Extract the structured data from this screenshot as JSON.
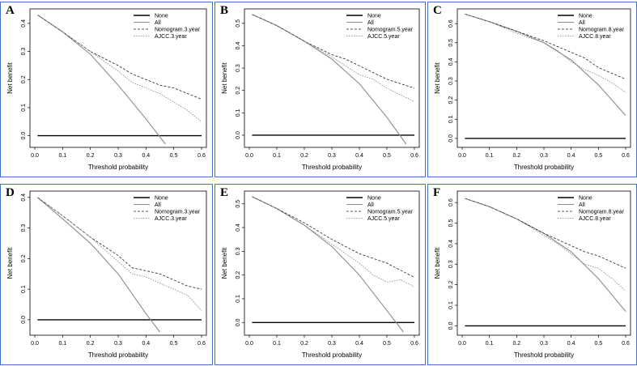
{
  "figure": {
    "colors": {
      "frame": "#4472c4",
      "none": "#000000",
      "all": "#8c8c8c",
      "nomogram": "#222222",
      "ajcc": "#888888"
    }
  },
  "chart_data": [
    {
      "type": "line",
      "panel": "A",
      "xlabel": "Threshold probability",
      "ylabel": "Net benefit",
      "xlim": [
        0,
        0.6
      ],
      "ylim": [
        -0.03,
        0.44
      ],
      "xticks": [
        "0.0",
        "0.1",
        "0.2",
        "0.3",
        "0.4",
        "0.5",
        "0.6"
      ],
      "yticks": [
        "0.0",
        "0.1",
        "0.2",
        "0.3",
        "0.4"
      ],
      "legend": [
        "None",
        "All",
        "Nomogram.3.year",
        "AJCC.3.year"
      ],
      "series": [
        {
          "name": "None",
          "x": [
            0.01,
            0.6
          ],
          "y": [
            0,
            0
          ]
        },
        {
          "name": "All",
          "x": [
            0.01,
            0.1,
            0.2,
            0.3,
            0.4,
            0.47
          ],
          "y": [
            0.43,
            0.37,
            0.29,
            0.18,
            0.06,
            -0.03
          ]
        },
        {
          "name": "Nomogram.3.year",
          "x": [
            0.01,
            0.1,
            0.2,
            0.3,
            0.35,
            0.4,
            0.45,
            0.5,
            0.55,
            0.6
          ],
          "y": [
            0.43,
            0.37,
            0.3,
            0.25,
            0.22,
            0.2,
            0.18,
            0.17,
            0.15,
            0.13
          ]
        },
        {
          "name": "AJCC.3.year",
          "x": [
            0.01,
            0.1,
            0.2,
            0.3,
            0.35,
            0.4,
            0.45,
            0.5,
            0.55,
            0.6
          ],
          "y": [
            0.43,
            0.37,
            0.3,
            0.23,
            0.19,
            0.17,
            0.15,
            0.12,
            0.09,
            0.05
          ]
        }
      ]
    },
    {
      "type": "line",
      "panel": "B",
      "xlabel": "Threshold probability",
      "ylabel": "Net benefit",
      "xlim": [
        0,
        0.6
      ],
      "ylim": [
        -0.04,
        0.55
      ],
      "xticks": [
        "0.0",
        "0.1",
        "0.2",
        "0.3",
        "0.4",
        "0.5",
        "0.6"
      ],
      "yticks": [
        "0.0",
        "0.1",
        "0.2",
        "0.3",
        "0.4",
        "0.5"
      ],
      "legend": [
        "None",
        "All",
        "Nomogram.5.year",
        "AJCC.5.year"
      ],
      "series": [
        {
          "name": "None",
          "x": [
            0.01,
            0.6
          ],
          "y": [
            0,
            0
          ]
        },
        {
          "name": "All",
          "x": [
            0.01,
            0.1,
            0.2,
            0.3,
            0.4,
            0.5,
            0.57
          ],
          "y": [
            0.54,
            0.49,
            0.42,
            0.34,
            0.23,
            0.08,
            -0.04
          ]
        },
        {
          "name": "Nomogram.5.year",
          "x": [
            0.01,
            0.1,
            0.2,
            0.3,
            0.35,
            0.4,
            0.45,
            0.5,
            0.55,
            0.6
          ],
          "y": [
            0.54,
            0.49,
            0.42,
            0.36,
            0.34,
            0.31,
            0.28,
            0.25,
            0.23,
            0.21
          ]
        },
        {
          "name": "AJCC.5.year",
          "x": [
            0.01,
            0.1,
            0.2,
            0.3,
            0.35,
            0.4,
            0.45,
            0.5,
            0.55,
            0.6
          ],
          "y": [
            0.54,
            0.49,
            0.42,
            0.35,
            0.31,
            0.27,
            0.25,
            0.21,
            0.18,
            0.15
          ]
        }
      ]
    },
    {
      "type": "line",
      "panel": "C",
      "xlabel": "Threshold probability",
      "ylabel": "Net benefit",
      "xlim": [
        0,
        0.6
      ],
      "ylim": [
        -0.03,
        0.66
      ],
      "xticks": [
        "0.0",
        "0.1",
        "0.2",
        "0.3",
        "0.4",
        "0.5",
        "0.6"
      ],
      "yticks": [
        "0.0",
        "0.1",
        "0.2",
        "0.3",
        "0.4",
        "0.5",
        "0.6"
      ],
      "legend": [
        "None",
        "All",
        "Nomogram.8.year",
        "AJCC.8.year"
      ],
      "series": [
        {
          "name": "None",
          "x": [
            0.01,
            0.6
          ],
          "y": [
            0,
            0
          ]
        },
        {
          "name": "All",
          "x": [
            0.01,
            0.1,
            0.2,
            0.3,
            0.4,
            0.5,
            0.6
          ],
          "y": [
            0.65,
            0.61,
            0.56,
            0.5,
            0.41,
            0.28,
            0.12
          ]
        },
        {
          "name": "Nomogram.8.year",
          "x": [
            0.01,
            0.1,
            0.2,
            0.3,
            0.35,
            0.4,
            0.45,
            0.5,
            0.55,
            0.6
          ],
          "y": [
            0.65,
            0.61,
            0.56,
            0.51,
            0.48,
            0.45,
            0.42,
            0.37,
            0.34,
            0.31
          ]
        },
        {
          "name": "AJCC.8.year",
          "x": [
            0.01,
            0.1,
            0.2,
            0.3,
            0.35,
            0.4,
            0.45,
            0.5,
            0.55,
            0.6
          ],
          "y": [
            0.65,
            0.61,
            0.55,
            0.5,
            0.46,
            0.4,
            0.36,
            0.33,
            0.29,
            0.24
          ]
        }
      ]
    },
    {
      "type": "line",
      "panel": "D",
      "xlabel": "Threshold probability",
      "ylabel": "Net benefit",
      "xlim": [
        0,
        0.6
      ],
      "ylim": [
        -0.04,
        0.41
      ],
      "xticks": [
        "0.0",
        "0.1",
        "0.2",
        "0.3",
        "0.4",
        "0.5",
        "0.6"
      ],
      "yticks": [
        "0.0",
        "0.1",
        "0.2",
        "0.3",
        "0.4"
      ],
      "legend": [
        "None",
        "All",
        "Nomogram.3.year",
        "AJCC.3.year"
      ],
      "series": [
        {
          "name": "None",
          "x": [
            0.01,
            0.6
          ],
          "y": [
            0,
            0
          ]
        },
        {
          "name": "All",
          "x": [
            0.01,
            0.1,
            0.2,
            0.3,
            0.4,
            0.45
          ],
          "y": [
            0.4,
            0.33,
            0.25,
            0.15,
            0.02,
            -0.04
          ]
        },
        {
          "name": "Nomogram.3.year",
          "x": [
            0.01,
            0.1,
            0.2,
            0.3,
            0.35,
            0.4,
            0.45,
            0.5,
            0.55,
            0.6
          ],
          "y": [
            0.4,
            0.34,
            0.27,
            0.21,
            0.17,
            0.16,
            0.15,
            0.13,
            0.11,
            0.1
          ]
        },
        {
          "name": "AJCC.3.year",
          "x": [
            0.01,
            0.1,
            0.2,
            0.3,
            0.35,
            0.4,
            0.45,
            0.5,
            0.55,
            0.6
          ],
          "y": [
            0.4,
            0.34,
            0.27,
            0.19,
            0.15,
            0.14,
            0.12,
            0.1,
            0.08,
            0.03
          ]
        }
      ]
    },
    {
      "type": "line",
      "panel": "E",
      "xlabel": "Threshold probability",
      "ylabel": "Net benefit",
      "xlim": [
        0,
        0.6
      ],
      "ylim": [
        -0.04,
        0.54
      ],
      "xticks": [
        "0.0",
        "0.1",
        "0.2",
        "0.3",
        "0.4",
        "0.5",
        "0.6"
      ],
      "yticks": [
        "0.0",
        "0.1",
        "0.2",
        "0.3",
        "0.4",
        "0.5"
      ],
      "legend": [
        "None",
        "All",
        "Nomogram.5.year",
        "AJCC.5.year"
      ],
      "series": [
        {
          "name": "None",
          "x": [
            0.01,
            0.6
          ],
          "y": [
            0,
            0
          ]
        },
        {
          "name": "All",
          "x": [
            0.01,
            0.1,
            0.2,
            0.3,
            0.4,
            0.5,
            0.56
          ],
          "y": [
            0.53,
            0.48,
            0.41,
            0.32,
            0.2,
            0.05,
            -0.04
          ]
        },
        {
          "name": "Nomogram.5.year",
          "x": [
            0.01,
            0.1,
            0.2,
            0.3,
            0.35,
            0.4,
            0.45,
            0.5,
            0.55,
            0.6
          ],
          "y": [
            0.53,
            0.48,
            0.42,
            0.35,
            0.32,
            0.29,
            0.27,
            0.25,
            0.22,
            0.19
          ]
        },
        {
          "name": "AJCC.5.year",
          "x": [
            0.01,
            0.1,
            0.2,
            0.3,
            0.35,
            0.4,
            0.45,
            0.5,
            0.55,
            0.6
          ],
          "y": [
            0.53,
            0.48,
            0.41,
            0.33,
            0.29,
            0.25,
            0.2,
            0.17,
            0.18,
            0.15
          ]
        }
      ]
    },
    {
      "type": "line",
      "panel": "F",
      "xlabel": "Threshold probability",
      "ylabel": "Net benefit",
      "xlim": [
        0,
        0.6
      ],
      "ylim": [
        -0.03,
        0.64
      ],
      "xticks": [
        "0.0",
        "0.1",
        "0.2",
        "0.3",
        "0.4",
        "0.5",
        "0.6"
      ],
      "yticks": [
        "0.0",
        "0.1",
        "0.2",
        "0.3",
        "0.4",
        "0.5",
        "0.6"
      ],
      "legend": [
        "None",
        "All",
        "Nomogram.8.year",
        "AJCC.8.year"
      ],
      "series": [
        {
          "name": "None",
          "x": [
            0.01,
            0.6
          ],
          "y": [
            0,
            0
          ]
        },
        {
          "name": "All",
          "x": [
            0.01,
            0.1,
            0.2,
            0.3,
            0.4,
            0.5,
            0.6
          ],
          "y": [
            0.62,
            0.58,
            0.52,
            0.45,
            0.36,
            0.23,
            0.07
          ]
        },
        {
          "name": "Nomogram.8.year",
          "x": [
            0.01,
            0.1,
            0.2,
            0.3,
            0.35,
            0.4,
            0.45,
            0.5,
            0.55,
            0.6
          ],
          "y": [
            0.62,
            0.58,
            0.52,
            0.45,
            0.42,
            0.39,
            0.36,
            0.34,
            0.31,
            0.28
          ]
        },
        {
          "name": "AJCC.8.year",
          "x": [
            0.01,
            0.1,
            0.2,
            0.3,
            0.35,
            0.4,
            0.45,
            0.5,
            0.55,
            0.6
          ],
          "y": [
            0.62,
            0.58,
            0.52,
            0.44,
            0.4,
            0.35,
            0.3,
            0.28,
            0.23,
            0.17
          ]
        }
      ]
    }
  ]
}
